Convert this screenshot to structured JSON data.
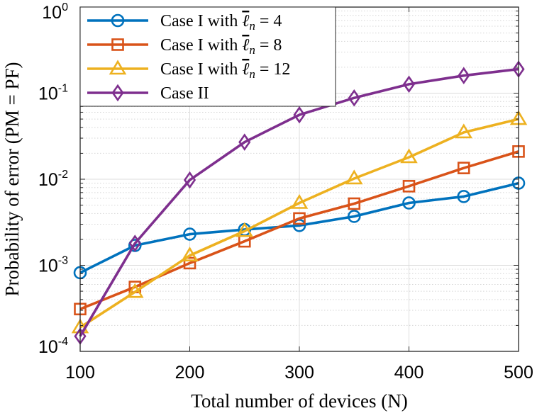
{
  "chart_data": {
    "type": "line",
    "xlabel": "Total number of devices (N)",
    "ylabel": "Probability of error (PM = PF)",
    "x": [
      100,
      150,
      200,
      250,
      300,
      350,
      400,
      450,
      500
    ],
    "xlim": [
      100,
      500
    ],
    "xticks": [
      "100",
      "200",
      "300",
      "400",
      "500"
    ],
    "yscale": "log",
    "ylim": [
      0.0001,
      1
    ],
    "yticks": [
      {
        "base": "10",
        "exp": "-4"
      },
      {
        "base": "10",
        "exp": "-3"
      },
      {
        "base": "10",
        "exp": "-2"
      },
      {
        "base": "10",
        "exp": "-1"
      },
      {
        "base": "10",
        "exp": "0"
      }
    ],
    "grid": true,
    "legend_position": "top-left",
    "series": [
      {
        "name": "Case I with ℓ̄n = 4",
        "legend_main": "Case I with ",
        "legend_ell": "ℓ",
        "legend_sub": "n",
        "legend_rest": " = 4",
        "color": "#0072BD",
        "marker": "circle",
        "values": [
          0.00082,
          0.0017,
          0.0023,
          0.0026,
          0.0029,
          0.0037,
          0.0053,
          0.0063,
          0.009
        ]
      },
      {
        "name": "Case I with ℓ̄n = 8",
        "legend_main": "Case I with ",
        "legend_ell": "ℓ",
        "legend_sub": "n",
        "legend_rest": " = 8",
        "color": "#D95319",
        "marker": "square",
        "values": [
          0.00031,
          0.00056,
          0.00106,
          0.0019,
          0.0035,
          0.0052,
          0.0083,
          0.0135,
          0.021
        ]
      },
      {
        "name": "Case I with ℓ̄n = 12",
        "legend_main": "Case I with ",
        "legend_ell": "ℓ",
        "legend_sub": "n",
        "legend_rest": " = 12",
        "color": "#EDB120",
        "marker": "triangle",
        "values": [
          0.00019,
          0.00049,
          0.0013,
          0.0025,
          0.0053,
          0.0102,
          0.018,
          0.035,
          0.05
        ]
      },
      {
        "name": "Case II",
        "legend_main": "Case II",
        "legend_ell": "",
        "legend_sub": "",
        "legend_rest": "",
        "color": "#7E2F8E",
        "marker": "diamond",
        "values": [
          0.00015,
          0.0018,
          0.0098,
          0.027,
          0.056,
          0.088,
          0.127,
          0.16,
          0.19
        ]
      }
    ]
  }
}
